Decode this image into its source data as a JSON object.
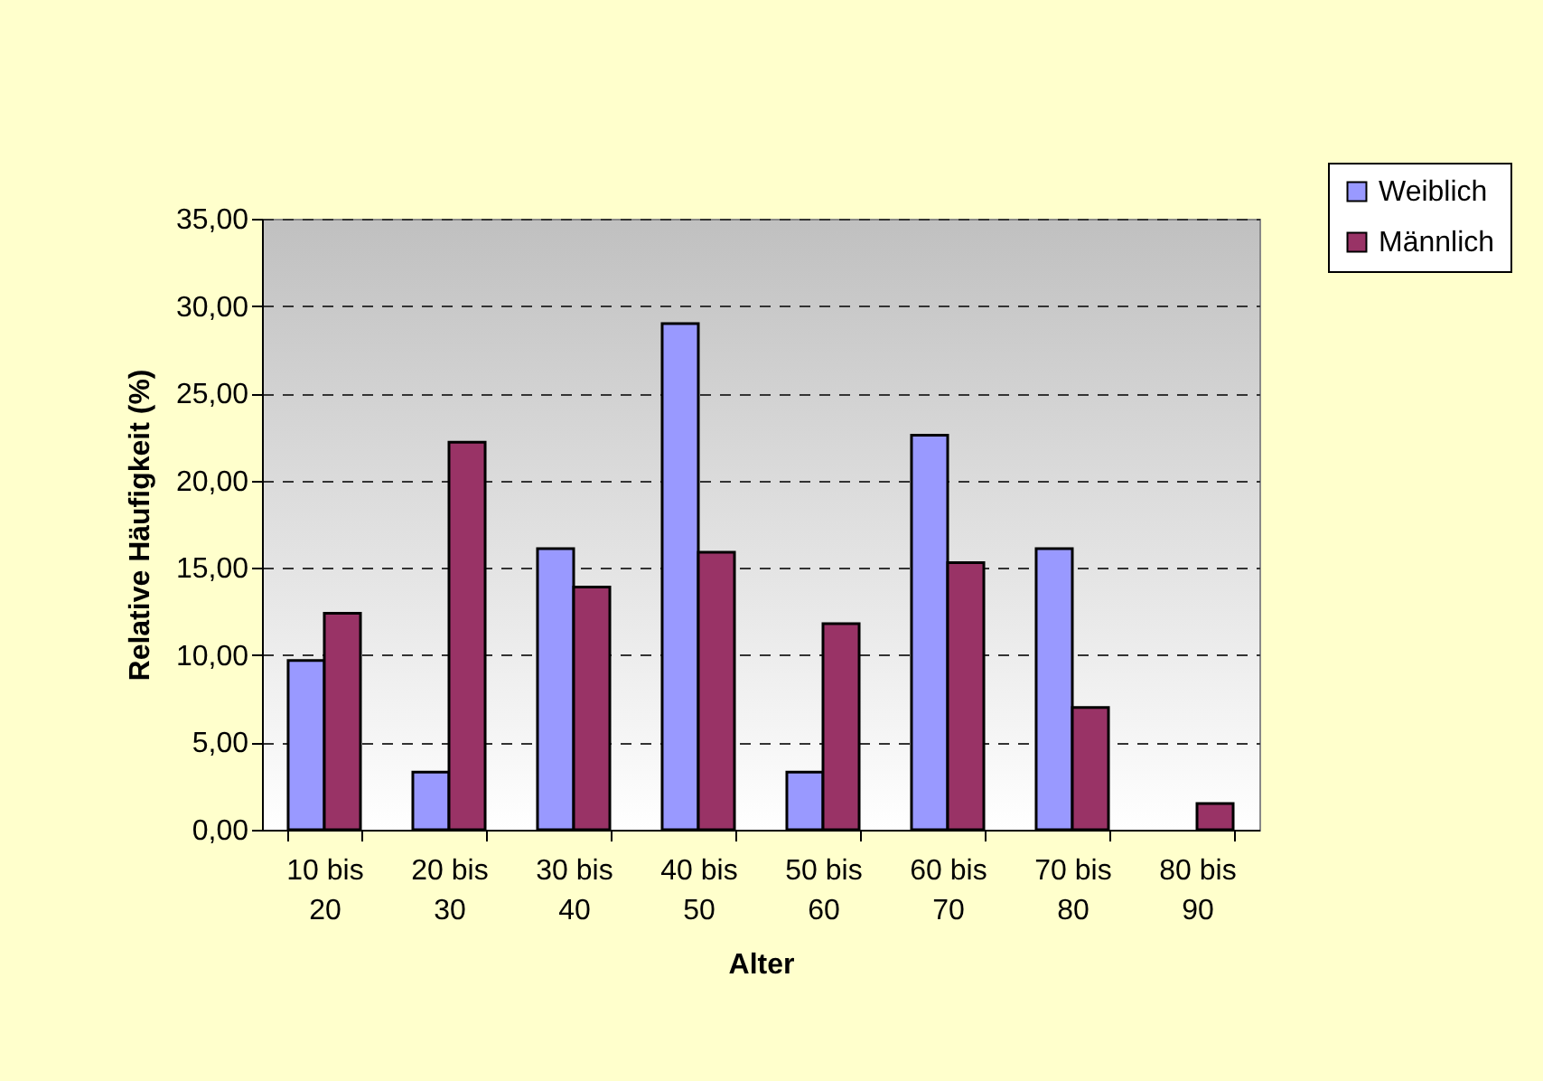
{
  "chart_data": {
    "type": "bar",
    "xlabel": "Alter",
    "ylabel": "Relative Häufigkeit (%)",
    "categories": [
      "10 bis 20",
      "20 bis 30",
      "30 bis 40",
      "40 bis 50",
      "50 bis 60",
      "60 bis 70",
      "70 bis 80",
      "80 bis 90"
    ],
    "series": [
      {
        "name": "Weiblich",
        "color": "#9999ff",
        "values": [
          9.7,
          3.3,
          16.1,
          29.0,
          3.3,
          22.6,
          16.1,
          null
        ]
      },
      {
        "name": "Männlich",
        "color": "#993366",
        "values": [
          12.4,
          22.2,
          13.9,
          15.9,
          11.8,
          15.3,
          7.0,
          1.5
        ]
      }
    ],
    "ylim": [
      0,
      35
    ],
    "yticks": [
      {
        "value": 0,
        "label": "0,00"
      },
      {
        "value": 5,
        "label": "5,00"
      },
      {
        "value": 10,
        "label": "10,00"
      },
      {
        "value": 15,
        "label": "15,00"
      },
      {
        "value": 20,
        "label": "20,00"
      },
      {
        "value": 25,
        "label": "25,00"
      },
      {
        "value": 30,
        "label": "30,00"
      },
      {
        "value": 35,
        "label": "35,00"
      }
    ],
    "grid": "y",
    "legend": "top right"
  }
}
